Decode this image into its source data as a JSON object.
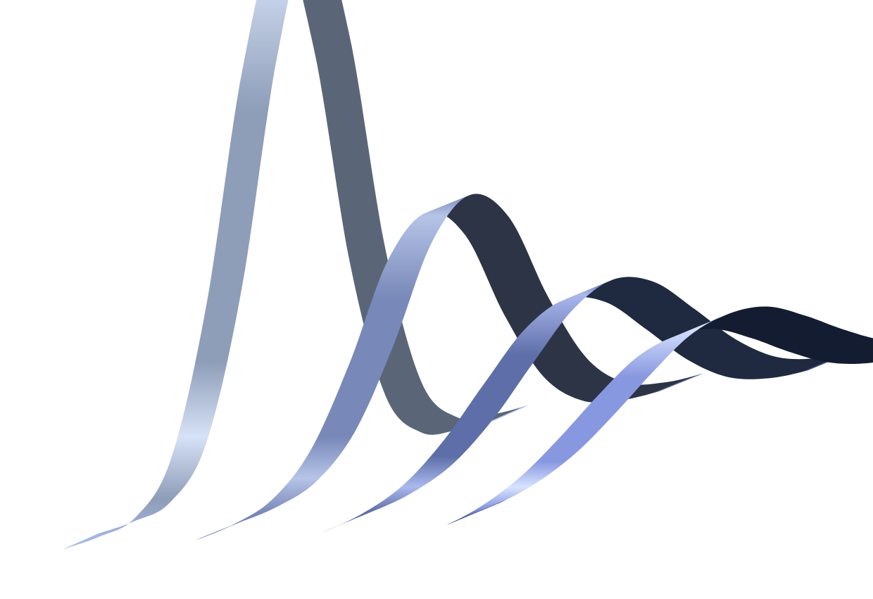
{
  "chart_data": {
    "type": "ribbon-3d",
    "title": "",
    "xlabel": "",
    "ylabel": "",
    "axes_visible": false,
    "grid": false,
    "legend": "none",
    "x": [
      -3,
      -2.5,
      -2,
      -1.5,
      -1,
      -0.5,
      0,
      0.5,
      1,
      1.5,
      2,
      2.5,
      3
    ],
    "ylim": [
      0,
      1
    ],
    "series": [
      {
        "values": [
          0.0,
          0.003,
          0.018,
          0.105,
          0.37,
          0.78,
          1.0,
          0.78,
          0.37,
          0.105,
          0.018,
          0.003,
          0.0
        ],
        "color_light": "#d6e2f7",
        "color_mid": "#8e9db8",
        "color_dark": "#5a6678",
        "color_base": "#a8bcee"
      },
      {
        "values": [
          0.0,
          0.01,
          0.045,
          0.15,
          0.36,
          0.62,
          0.72,
          0.62,
          0.36,
          0.15,
          0.045,
          0.01,
          0.0
        ],
        "color_light": "#b6c4e8",
        "color_mid": "#7888b8",
        "color_dark": "#2c3446",
        "color_base": "#5f70a6"
      },
      {
        "values": [
          0.0,
          0.02,
          0.075,
          0.19,
          0.35,
          0.5,
          0.56,
          0.5,
          0.35,
          0.19,
          0.075,
          0.02,
          0.0
        ],
        "color_light": "#aab8ee",
        "color_mid": "#5e6ea8",
        "color_dark": "#1f2a40",
        "color_base": "#47588f"
      },
      {
        "values": [
          0.0,
          0.03,
          0.095,
          0.2,
          0.32,
          0.42,
          0.45,
          0.42,
          0.32,
          0.2,
          0.095,
          0.03,
          0.0
        ],
        "color_light": "#d8e4ff",
        "color_mid": "#8898e0",
        "color_dark": "#141c32",
        "color_base": "#2c3c72"
      }
    ]
  }
}
